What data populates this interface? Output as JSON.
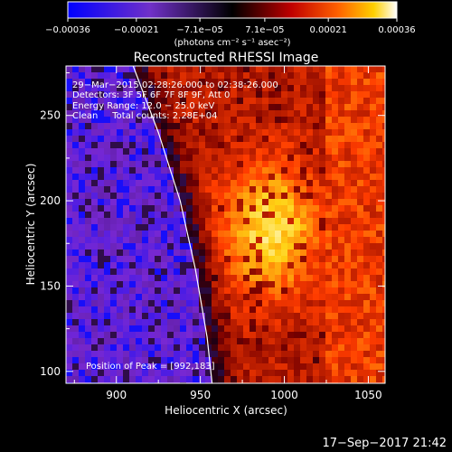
{
  "chart_data": {
    "type": "heatmap",
    "title": "Reconstructed RHESSI Image",
    "xlabel": "Heliocentric X (arcsec)",
    "ylabel": "Heliocentric Y (arcsec)",
    "xlim": [
      870,
      1060
    ],
    "ylim": [
      93,
      279
    ],
    "x_ticks": [
      900,
      950,
      1000,
      1050
    ],
    "y_ticks": [
      100,
      150,
      200,
      250
    ],
    "colorbar": {
      "range": [
        -0.00036,
        0.00036
      ],
      "tick_values": [
        -0.00036,
        -0.00021,
        -7.1e-05,
        7.1e-05,
        0.00021,
        0.00036
      ],
      "tick_labels": [
        "−0.00036",
        "−0.00021",
        "−7.1e−05",
        "7.1e−05",
        "0.00021",
        "0.00036"
      ],
      "unit_label": "(photons cm⁻² s⁻¹ asec⁻²)"
    },
    "annotations": [
      "29−Mar−2015 02:28:26.000 to 02:38:26.000",
      "Detectors: 3F 5F 6F 7F 8F 9F, Att 0",
      "Energy Range: 12.0 − 25.0 keV",
      "Clean     Total counts: 2.28E+04"
    ],
    "peak_label": "Position of Peak = [992,183]",
    "peak": [
      992,
      183
    ],
    "limb_curve": [
      [
        910,
        279
      ],
      [
        925,
        240
      ],
      [
        938,
        200
      ],
      [
        947,
        160
      ],
      [
        954,
        120
      ],
      [
        957,
        93
      ]
    ],
    "timestamp": "17−Sep−2017 21:42"
  }
}
